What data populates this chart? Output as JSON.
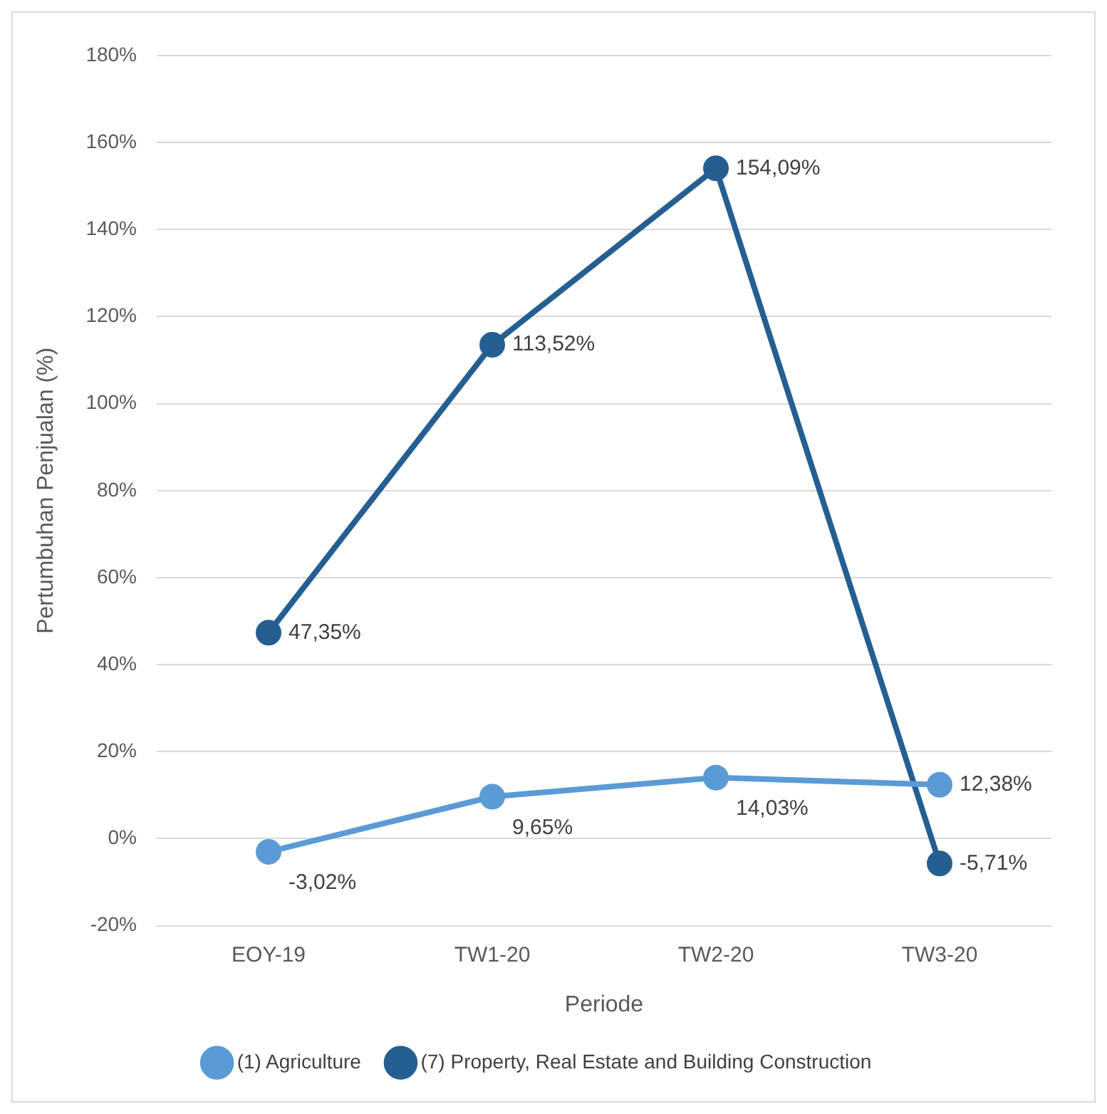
{
  "chart_data": {
    "type": "line",
    "xlabel": "Periode",
    "ylabel": "Pertumbuhan Penjualan (%)",
    "categories": [
      "EOY-19",
      "TW1-20",
      "TW2-20",
      "TW3-20"
    ],
    "series": [
      {
        "name": "(1) Agriculture",
        "color": "#5b9bd5",
        "values": [
          -3.02,
          9.65,
          14.03,
          12.38
        ],
        "value_labels": [
          "-3,02%",
          "9,65%",
          "14,03%",
          "12,38%"
        ]
      },
      {
        "name": "(7) Property, Real Estate and Building Construction",
        "color": "#255e91",
        "values": [
          47.35,
          113.52,
          154.09,
          -5.71
        ],
        "value_labels": [
          "47,35%",
          "113,52%",
          "154,09%",
          "-5,71%"
        ]
      }
    ],
    "ylim": [
      -20,
      180
    ],
    "yticks": [
      {
        "value": -20,
        "label": "-20%"
      },
      {
        "value": 0,
        "label": "0%"
      },
      {
        "value": 20,
        "label": "20%"
      },
      {
        "value": 40,
        "label": "40%"
      },
      {
        "value": 60,
        "label": "60%"
      },
      {
        "value": 80,
        "label": "80%"
      },
      {
        "value": 100,
        "label": "100%"
      },
      {
        "value": 120,
        "label": "120%"
      },
      {
        "value": 140,
        "label": "140%"
      },
      {
        "value": 160,
        "label": "160%"
      },
      {
        "value": 180,
        "label": "180%"
      }
    ],
    "grid": "y",
    "legend": "bottom",
    "marker": "circle",
    "line_style": "solid"
  }
}
